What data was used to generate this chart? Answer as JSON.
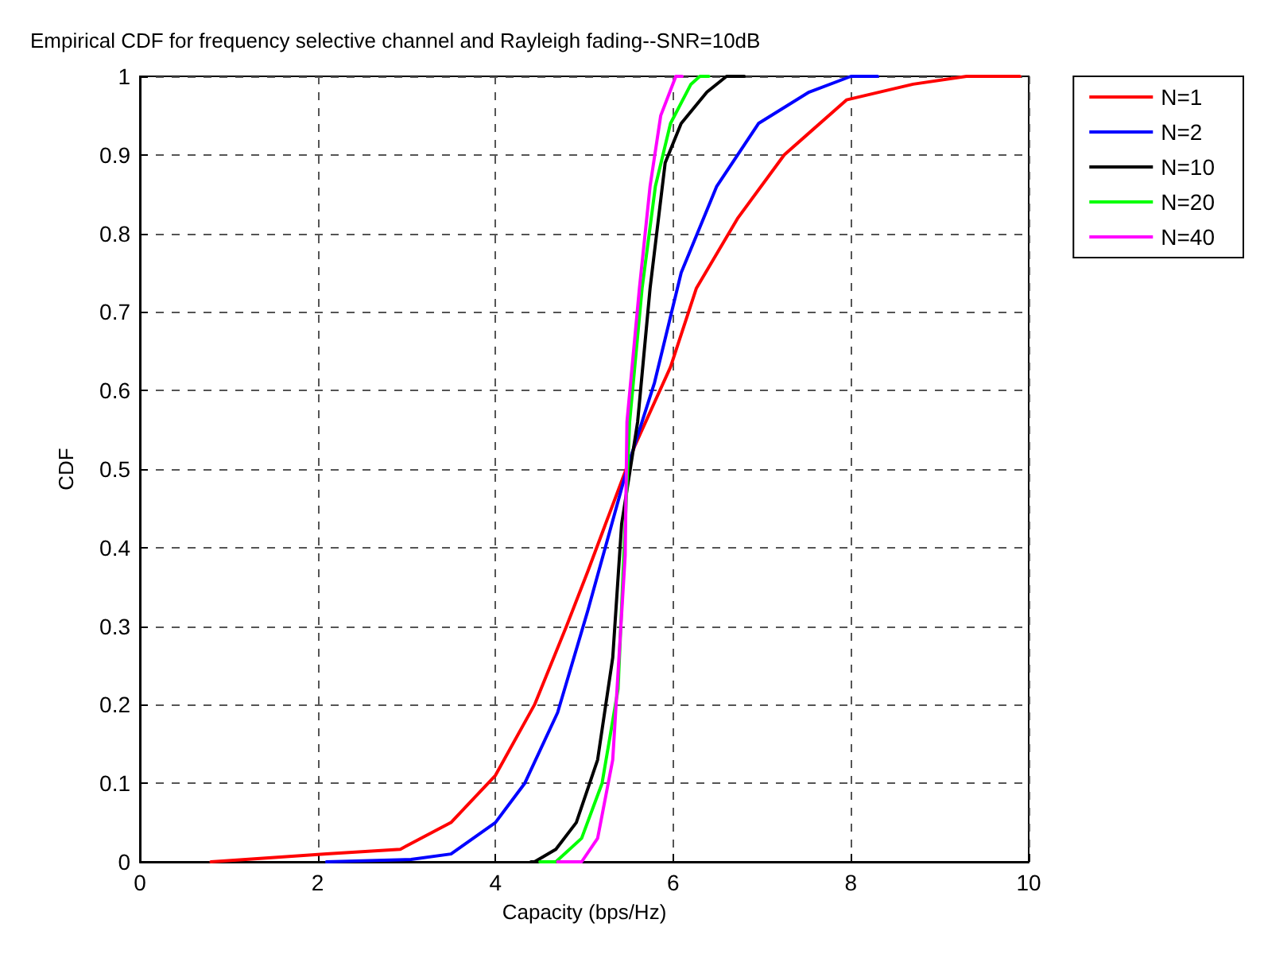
{
  "chart_data": {
    "type": "line",
    "title": "Empirical CDF for frequency selective channel and Rayleigh fading--SNR=10dB",
    "xlabel": "Capacity (bps/Hz)",
    "ylabel": "CDF",
    "xlim": [
      0,
      10
    ],
    "xticks": [
      0,
      2,
      4,
      6,
      8,
      10
    ],
    "ylim": [
      0,
      1
    ],
    "yticks": [
      0,
      0.1,
      0.2,
      0.3,
      0.4,
      0.5,
      0.6,
      0.7,
      0.8,
      0.9,
      1
    ],
    "grid": true,
    "legend": "top right",
    "line_style": "solid",
    "marker": "none",
    "series": [
      {
        "name": "N=1",
        "color": "#ff0000",
        "x": [
          0.8,
          2.1,
          2.93,
          3.5,
          4,
          4.44,
          4.8,
          5.04,
          5.57,
          5.97,
          6.26,
          6.73,
          7.25,
          7.95,
          8.7,
          9.3,
          9.9
        ],
        "values": [
          0,
          0.01,
          0.016,
          0.05,
          0.11,
          0.2,
          0.3,
          0.37,
          0.53,
          0.63,
          0.73,
          0.82,
          0.9,
          0.97,
          0.99,
          1,
          1
        ]
      },
      {
        "name": "N=2",
        "color": "#0000ff",
        "x": [
          2.1,
          3.05,
          3.5,
          4,
          4.33,
          4.7,
          5.04,
          5.48,
          5.79,
          6.09,
          6.49,
          6.96,
          7.53,
          8,
          8.3
        ],
        "values": [
          0,
          0.003,
          0.01,
          0.05,
          0.1,
          0.19,
          0.32,
          0.5,
          0.61,
          0.75,
          0.86,
          0.94,
          0.98,
          1,
          1
        ]
      },
      {
        "name": "N=10",
        "color": "#000000",
        "x": [
          4.4,
          4.44,
          4.68,
          4.91,
          5.15,
          5.32,
          5.42,
          5.6,
          5.74,
          5.91,
          6.09,
          6.38,
          6.6,
          6.8
        ],
        "values": [
          0,
          0,
          0.016,
          0.05,
          0.13,
          0.26,
          0.43,
          0.56,
          0.73,
          0.89,
          0.94,
          0.98,
          1,
          1
        ]
      },
      {
        "name": "N=20",
        "color": "#00ff00",
        "x": [
          4.5,
          4.68,
          4.97,
          5.2,
          5.38,
          5.51,
          5.65,
          5.8,
          5.97,
          6.2,
          6.3,
          6.4
        ],
        "values": [
          0,
          0,
          0.03,
          0.1,
          0.22,
          0.56,
          0.73,
          0.86,
          0.94,
          0.99,
          1,
          1
        ]
      },
      {
        "name": "N=40",
        "color": "#ff00ff",
        "x": [
          4.7,
          4.97,
          5.15,
          5.32,
          5.46,
          5.48,
          5.62,
          5.74,
          5.86,
          6.03,
          6.1
        ],
        "values": [
          0,
          0,
          0.03,
          0.13,
          0.39,
          0.56,
          0.73,
          0.86,
          0.95,
          1,
          1
        ]
      }
    ]
  }
}
